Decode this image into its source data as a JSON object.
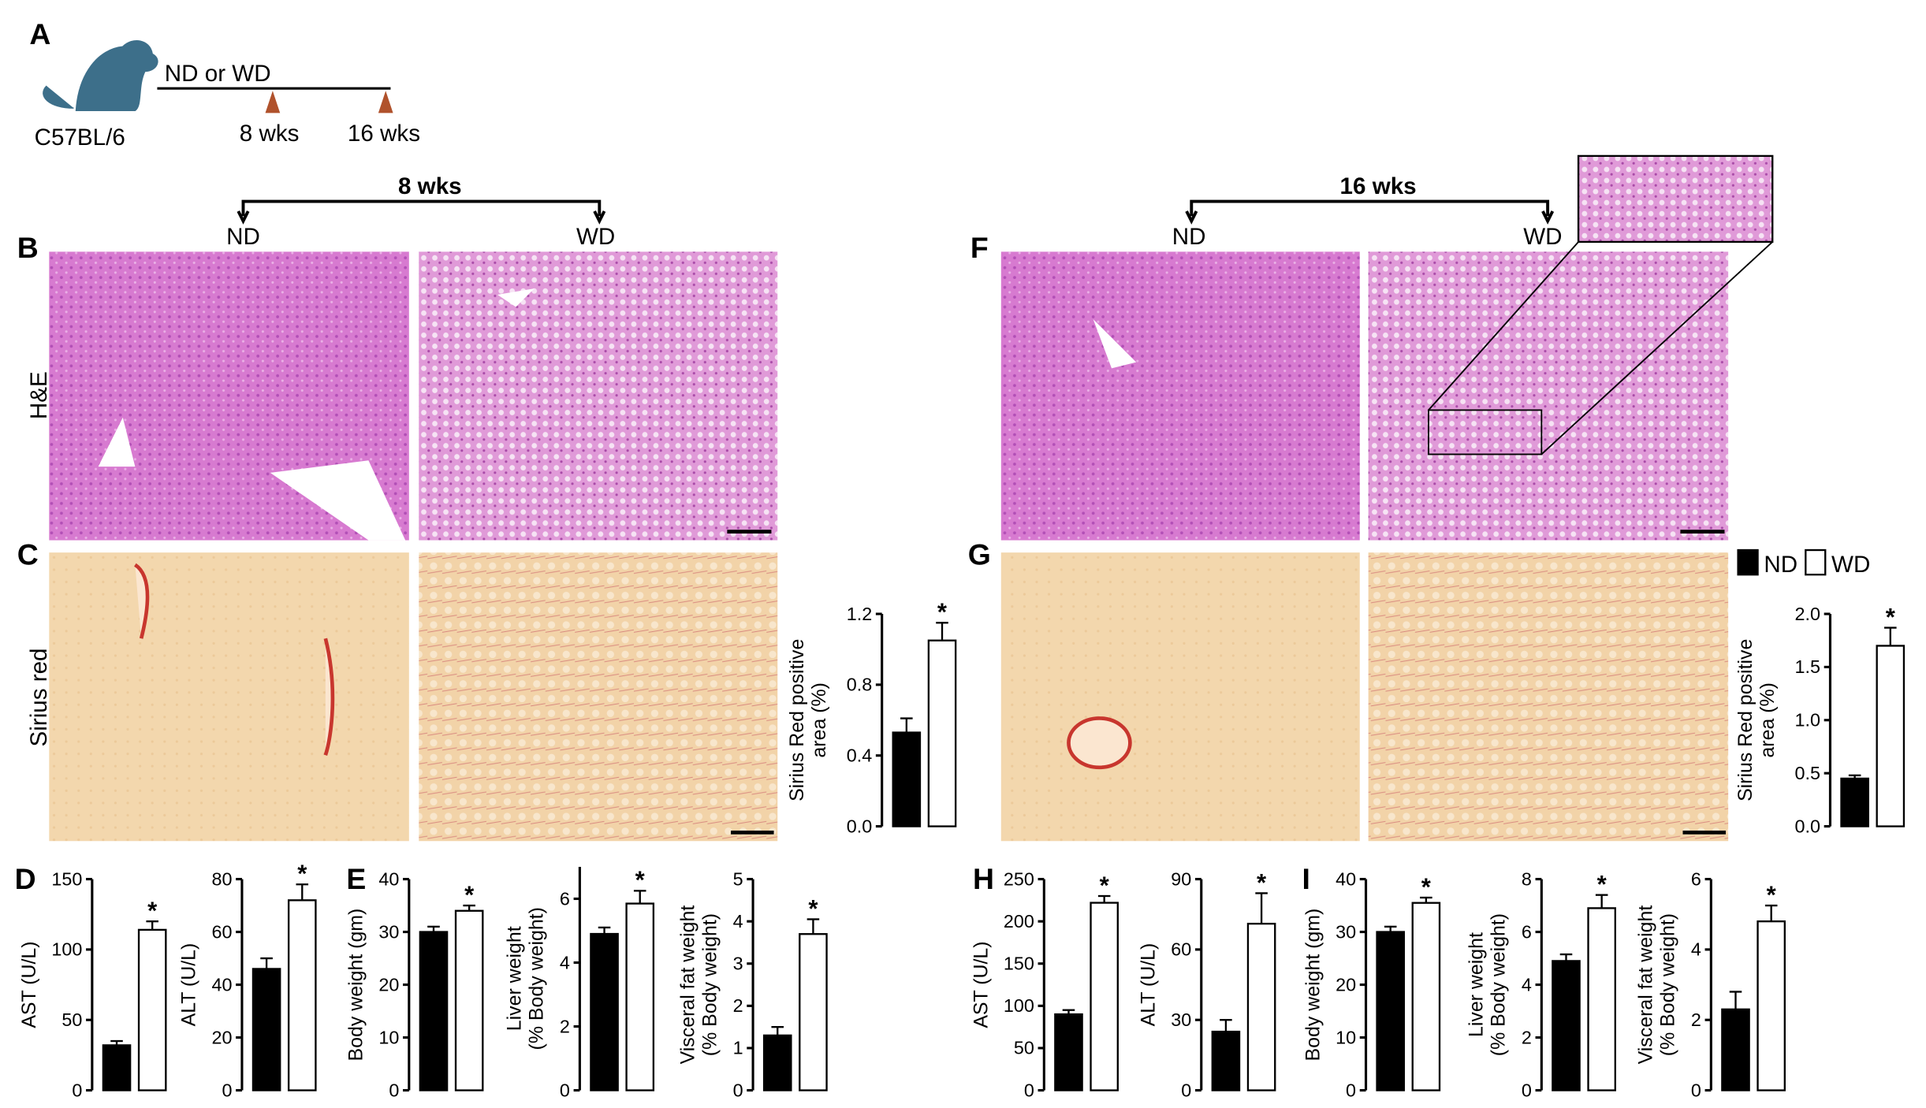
{
  "figure": {
    "panels": [
      "A",
      "B",
      "C",
      "D",
      "E",
      "F",
      "G",
      "H",
      "I"
    ],
    "diet": "ND or WD",
    "strain": "C57BL/6",
    "time1": "8 wks",
    "time2": "16 wks",
    "header8": "8 wks",
    "header16": "16 wks",
    "nd": "ND",
    "wd": "WD",
    "stain1": "H&E",
    "stain2": "Sirius red"
  },
  "chart_data": [
    {
      "type": "bar",
      "ylabel": [
        "Sirius Red positive",
        "area (%)"
      ],
      "ylim": [
        0,
        1.2
      ],
      "yticks": [
        {
          "value": 0,
          "label": "0.0"
        },
        0.4,
        0.8,
        1.2
      ],
      "series": [
        {
          "name": "ND",
          "color": "#000000",
          "values": [
            0.53
          ],
          "errors": [
            0.08
          ]
        },
        {
          "name": "WD",
          "color": "#ffffff",
          "values": [
            1.05
          ],
          "errors": [
            0.1
          ]
        }
      ],
      "annotation": "*"
    },
    {
      "type": "bar",
      "ylabel": [
        "Sirius Red positive",
        "area (%)"
      ],
      "ylim": [
        0,
        2
      ],
      "yticks": [
        {
          "value": 0,
          "label": "0.0"
        },
        0.5,
        {
          "value": 1,
          "label": "1.0"
        },
        1.5,
        {
          "value": 2,
          "label": "2.0"
        }
      ],
      "series": [
        {
          "name": "ND",
          "color": "#000000",
          "values": [
            0.45
          ],
          "errors": [
            0.03
          ]
        },
        {
          "name": "WD",
          "color": "#ffffff",
          "values": [
            1.7
          ],
          "errors": [
            0.17
          ]
        }
      ],
      "annotation": "*",
      "legend": "top-right"
    },
    {
      "type": "bar",
      "ylabel": [
        "AST (U/L)"
      ],
      "ylim": [
        0,
        150
      ],
      "yticks": [
        0,
        50,
        100,
        150
      ],
      "series": [
        {
          "name": "ND",
          "color": "#000000",
          "values": [
            32
          ],
          "errors": [
            3
          ]
        },
        {
          "name": "WD",
          "color": "#ffffff",
          "values": [
            114
          ],
          "errors": [
            6
          ]
        }
      ],
      "annotation": "*"
    },
    {
      "type": "bar",
      "ylabel": [
        "ALT (U/L)"
      ],
      "ylim": [
        0,
        80
      ],
      "yticks": [
        0,
        20,
        40,
        60,
        80
      ],
      "series": [
        {
          "name": "ND",
          "color": "#000000",
          "values": [
            46
          ],
          "errors": [
            4
          ]
        },
        {
          "name": "WD",
          "color": "#ffffff",
          "values": [
            72
          ],
          "errors": [
            6
          ]
        }
      ],
      "annotation": "*"
    },
    {
      "type": "bar",
      "ylabel": [
        "Body weight (gm)"
      ],
      "ylim": [
        0,
        40
      ],
      "yticks": [
        0,
        10,
        20,
        30,
        40
      ],
      "series": [
        {
          "name": "ND",
          "color": "#000000",
          "values": [
            30
          ],
          "errors": [
            1
          ]
        },
        {
          "name": "WD",
          "color": "#ffffff",
          "values": [
            34
          ],
          "errors": [
            1
          ]
        }
      ],
      "annotation": "*"
    },
    {
      "type": "bar",
      "ylabel": [
        "Liver weight",
        "(% Body weight)"
      ],
      "ylim": [
        0,
        7
      ],
      "yticks": [
        0,
        2,
        4,
        6
      ],
      "series": [
        {
          "name": "ND",
          "color": "#000000",
          "values": [
            4.9
          ],
          "errors": [
            0.2
          ]
        },
        {
          "name": "WD",
          "color": "#ffffff",
          "values": [
            5.85
          ],
          "errors": [
            0.4
          ]
        }
      ],
      "annotation": "*"
    },
    {
      "type": "bar",
      "ylabel": [
        "Visceral fat weight",
        "(% Body weight)"
      ],
      "ylim": [
        0,
        5
      ],
      "yticks": [
        0,
        1,
        2,
        3,
        4,
        5
      ],
      "series": [
        {
          "name": "ND",
          "color": "#000000",
          "values": [
            1.3
          ],
          "errors": [
            0.2
          ]
        },
        {
          "name": "WD",
          "color": "#ffffff",
          "values": [
            3.7
          ],
          "errors": [
            0.35
          ]
        }
      ],
      "annotation": "*"
    },
    {
      "type": "bar",
      "ylabel": [
        "AST (U/L)"
      ],
      "ylim": [
        0,
        250
      ],
      "yticks": [
        0,
        50,
        100,
        150,
        200,
        250
      ],
      "series": [
        {
          "name": "ND",
          "color": "#000000",
          "values": [
            90
          ],
          "errors": [
            5
          ]
        },
        {
          "name": "WD",
          "color": "#ffffff",
          "values": [
            222
          ],
          "errors": [
            8
          ]
        }
      ],
      "annotation": "*"
    },
    {
      "type": "bar",
      "ylabel": [
        "ALT (U/L)"
      ],
      "ylim": [
        0,
        90
      ],
      "yticks": [
        0,
        30,
        60,
        90
      ],
      "series": [
        {
          "name": "ND",
          "color": "#000000",
          "values": [
            25
          ],
          "errors": [
            5
          ]
        },
        {
          "name": "WD",
          "color": "#ffffff",
          "values": [
            71
          ],
          "errors": [
            13
          ]
        }
      ],
      "annotation": "*"
    },
    {
      "type": "bar",
      "ylabel": [
        "Body weight (gm)"
      ],
      "ylim": [
        0,
        40
      ],
      "yticks": [
        0,
        10,
        20,
        30,
        40
      ],
      "series": [
        {
          "name": "ND",
          "color": "#000000",
          "values": [
            30
          ],
          "errors": [
            1
          ]
        },
        {
          "name": "WD",
          "color": "#ffffff",
          "values": [
            35.5
          ],
          "errors": [
            1
          ]
        }
      ],
      "annotation": "*"
    },
    {
      "type": "bar",
      "ylabel": [
        "Liver weight",
        "(% Body weight)"
      ],
      "ylim": [
        0,
        8
      ],
      "yticks": [
        0,
        2,
        4,
        6,
        8
      ],
      "series": [
        {
          "name": "ND",
          "color": "#000000",
          "values": [
            4.9
          ],
          "errors": [
            0.25
          ]
        },
        {
          "name": "WD",
          "color": "#ffffff",
          "values": [
            6.9
          ],
          "errors": [
            0.5
          ]
        }
      ],
      "annotation": "*"
    },
    {
      "type": "bar",
      "ylabel": [
        "Visceral fat weight",
        "(% Body weight)"
      ],
      "ylim": [
        0,
        6
      ],
      "yticks": [
        0,
        2,
        4,
        6
      ],
      "series": [
        {
          "name": "ND",
          "color": "#000000",
          "values": [
            2.3
          ],
          "errors": [
            0.5
          ]
        },
        {
          "name": "WD",
          "color": "#ffffff",
          "values": [
            4.8
          ],
          "errors": [
            0.45
          ]
        }
      ],
      "annotation": "*"
    }
  ]
}
